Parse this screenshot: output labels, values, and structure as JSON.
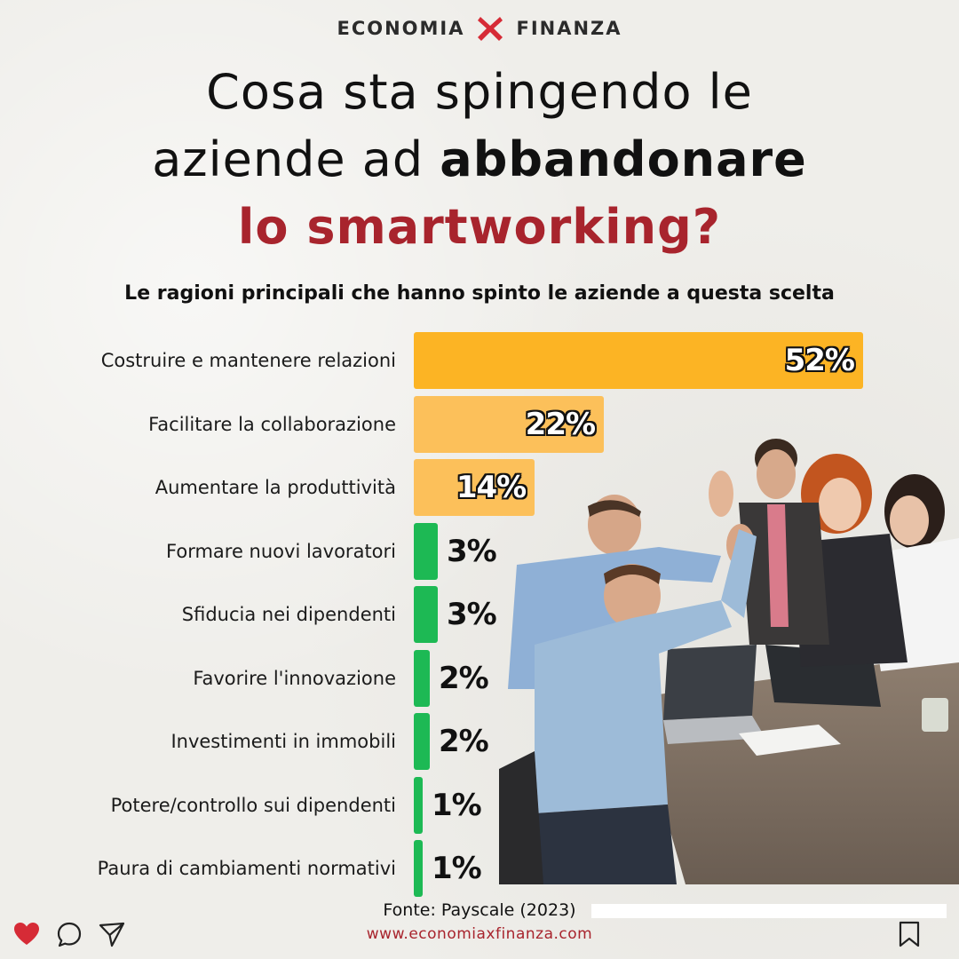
{
  "brand": {
    "left": "ECONOMIA",
    "right": "FINANZA",
    "accent_color": "#d62b36"
  },
  "title": {
    "line1": "Cosa sta spingendo le",
    "line2_regular": "aziende ad ",
    "line2_bold": "abbandonare",
    "line3": "lo smartworking?",
    "accent_color": "#a8242d"
  },
  "subtitle": "Le ragioni principali che hanno spinto le aziende a questa scelta",
  "chart_data": {
    "type": "bar",
    "orientation": "horizontal",
    "unit": "%",
    "categories": [
      "Costruire e mantenere relazioni",
      "Facilitare la collaborazione",
      "Aumentare la produttività",
      "Formare nuovi lavoratori",
      "Sfiducia nei dipendenti",
      "Favorire l'innovazione",
      "Investimenti in immobili",
      "Potere/controllo sui dipendenti",
      "Paura di cambiamenti normativi"
    ],
    "values": [
      52,
      22,
      14,
      3,
      3,
      2,
      2,
      1,
      1
    ],
    "value_labels": [
      "52%",
      "22%",
      "14%",
      "3%",
      "3%",
      "2%",
      "2%",
      "1%",
      "1%"
    ],
    "colors": [
      "#fcb424",
      "#fcc05a",
      "#fcc05a",
      "#1db954",
      "#1db954",
      "#1db954",
      "#1db954",
      "#1db954",
      "#1db954"
    ],
    "xlim": [
      0,
      52
    ],
    "grid": false,
    "legend": false
  },
  "source": "Fonte: Payscale (2023)",
  "url": "www.economiaxfinanza.com",
  "social": {
    "icons": [
      "heart-icon",
      "comment-icon",
      "share-icon",
      "bookmark-icon"
    ],
    "heart_color": "#d62b36"
  }
}
